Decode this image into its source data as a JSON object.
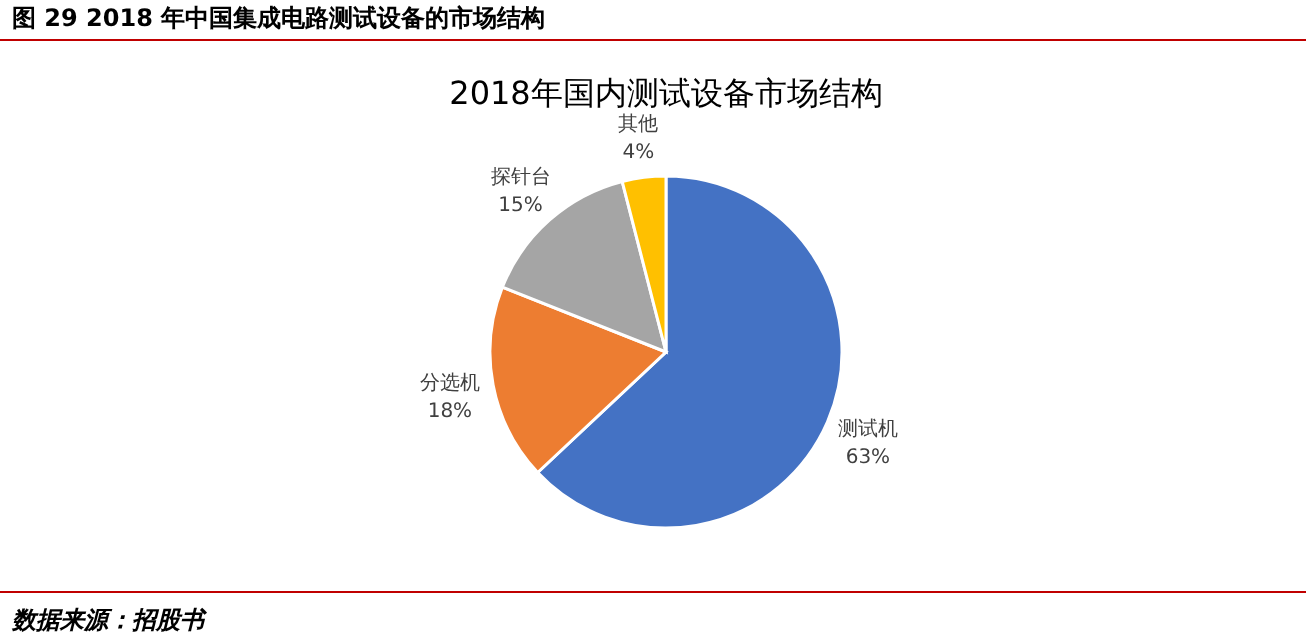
{
  "chart_data": {
    "type": "pie",
    "title": "2018年国内测试设备市场结构",
    "subtitle": "图 29 2018 年中国集成电路测试设备的市场结构",
    "categories": [
      "测试机",
      "分选机",
      "探针台",
      "其他"
    ],
    "values": [
      63,
      18,
      15,
      4
    ],
    "value_labels": [
      "63%",
      "18%",
      "15%",
      "4%"
    ],
    "colors": [
      "#4472c4",
      "#ed7d31",
      "#a5a5a5",
      "#ffc000"
    ],
    "annotations": [
      "数据来源：招股书"
    ]
  }
}
